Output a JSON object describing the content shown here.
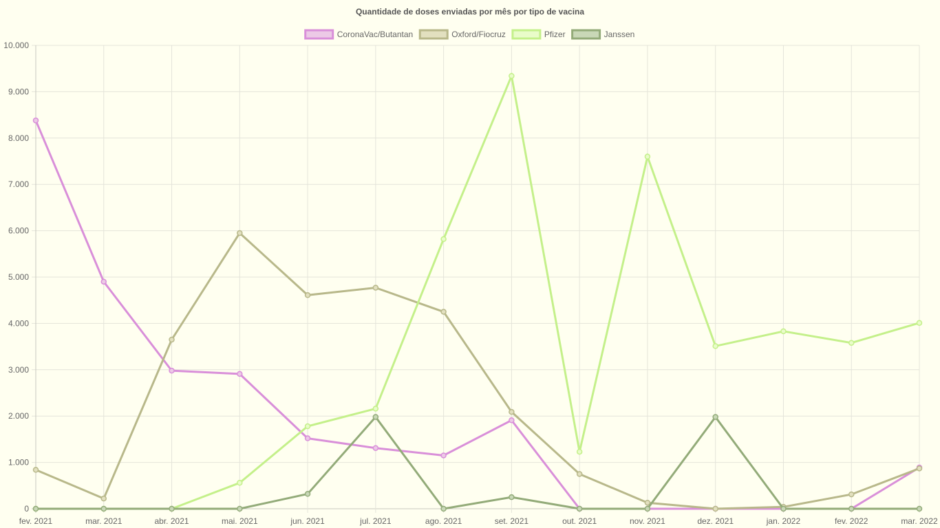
{
  "chart_data": {
    "type": "line",
    "title": "Quantidade de doses enviadas por mês por tipo de vacina",
    "xlabel": "",
    "ylabel": "",
    "ylim": [
      0,
      10000
    ],
    "y_ticks": [
      "0",
      "1.000",
      "2.000",
      "3.000",
      "4.000",
      "5.000",
      "6.000",
      "7.000",
      "8.000",
      "9.000",
      "10.000"
    ],
    "y_tick_values": [
      0,
      1000,
      2000,
      3000,
      4000,
      5000,
      6000,
      7000,
      8000,
      9000,
      10000
    ],
    "categories": [
      "fev. 2021",
      "mar. 2021",
      "abr. 2021",
      "mai. 2021",
      "jun. 2021",
      "jul. 2021",
      "ago. 2021",
      "set. 2021",
      "out. 2021",
      "nov. 2021",
      "dez. 2021",
      "jan. 2022",
      "fev. 2022",
      "mar. 2022"
    ],
    "grid": true,
    "legend_position": "top",
    "series": [
      {
        "name": "CoronaVac/Butantan",
        "color": "#d98fd9",
        "fill": "#ecc9e6",
        "values": [
          8380,
          4900,
          2980,
          2910,
          1520,
          1310,
          1150,
          1910,
          0,
          0,
          0,
          0,
          0,
          890
        ]
      },
      {
        "name": "Oxford/Fiocruz",
        "color": "#b8b88a",
        "fill": "#e2e0bf",
        "values": [
          840,
          220,
          3650,
          5950,
          4610,
          4770,
          4250,
          2090,
          750,
          130,
          0,
          40,
          310,
          870
        ]
      },
      {
        "name": "Pfizer",
        "color": "#c4f08a",
        "fill": "#e9fcc9",
        "values": [
          0,
          0,
          0,
          560,
          1780,
          2160,
          5820,
          9340,
          1230,
          7600,
          3510,
          3830,
          3580,
          4010
        ]
      },
      {
        "name": "Janssen",
        "color": "#93ab79",
        "fill": "#c9d8b7",
        "values": [
          0,
          0,
          0,
          0,
          320,
          1980,
          0,
          250,
          0,
          0,
          1980,
          0,
          0,
          0
        ]
      }
    ]
  }
}
